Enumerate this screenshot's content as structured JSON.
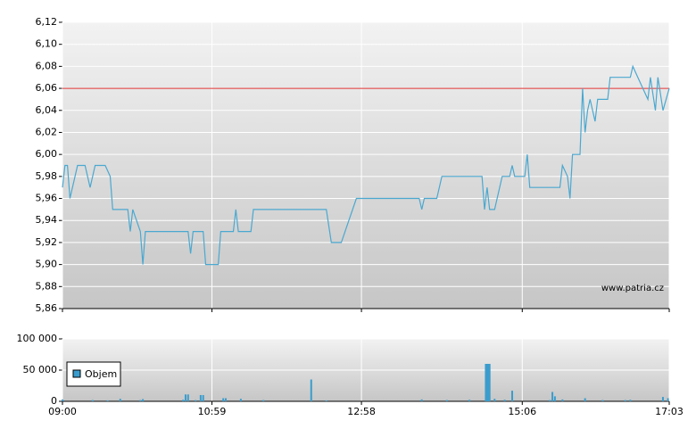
{
  "chart_data": [
    {
      "type": "line",
      "xlim": [
        "09:00",
        "17:03"
      ],
      "ylim": [
        5.86,
        6.12
      ],
      "yticks": [
        {
          "value": 5.86,
          "label": "5,86"
        },
        {
          "value": 5.88,
          "label": "5,88"
        },
        {
          "value": 5.9,
          "label": "5,90"
        },
        {
          "value": 5.92,
          "label": "5,92"
        },
        {
          "value": 5.94,
          "label": "5,94"
        },
        {
          "value": 5.96,
          "label": "5,96"
        },
        {
          "value": 5.98,
          "label": "5,98"
        },
        {
          "value": 6.0,
          "label": "6,00"
        },
        {
          "value": 6.02,
          "label": "6,02"
        },
        {
          "value": 6.04,
          "label": "6,04"
        },
        {
          "value": 6.06,
          "label": "6,06"
        },
        {
          "value": 6.08,
          "label": "6,08"
        },
        {
          "value": 6.1,
          "label": "6,10"
        },
        {
          "value": 6.12,
          "label": "6,12"
        }
      ],
      "grid": true,
      "reference_line": {
        "value": 6.06,
        "color": "#e03030"
      },
      "annotation": "www.patria.cz",
      "series": [
        {
          "color": "#4aa8d0",
          "x": [
            "09:00",
            "09:02",
            "09:04",
            "09:06",
            "09:12",
            "09:18",
            "09:22",
            "09:26",
            "09:34",
            "09:38",
            "09:40",
            "09:52",
            "09:54",
            "09:56",
            "10:02",
            "10:04",
            "10:06",
            "10:40",
            "10:42",
            "10:44",
            "10:52",
            "10:54",
            "11:04",
            "11:06",
            "11:16",
            "11:18",
            "11:20",
            "11:30",
            "11:32",
            "12:30",
            "12:34",
            "12:42",
            "12:54",
            "13:44",
            "13:46",
            "13:48",
            "13:58",
            "14:02",
            "14:34",
            "14:36",
            "14:38",
            "14:40",
            "14:44",
            "14:50",
            "14:56",
            "14:58",
            "15:00",
            "15:08",
            "15:10",
            "15:12",
            "15:36",
            "15:38",
            "15:42",
            "15:44",
            "15:46",
            "15:52",
            "15:54",
            "15:56",
            "15:58",
            "16:00",
            "16:04",
            "16:06",
            "16:14",
            "16:16",
            "16:32",
            "16:34",
            "16:38",
            "16:46",
            "16:48",
            "16:52",
            "16:54",
            "16:58",
            "17:03"
          ],
          "values": [
            5.97,
            5.99,
            5.99,
            5.96,
            5.99,
            5.99,
            5.97,
            5.99,
            5.99,
            5.98,
            5.95,
            5.95,
            5.93,
            5.95,
            5.93,
            5.9,
            5.93,
            5.93,
            5.91,
            5.93,
            5.93,
            5.9,
            5.9,
            5.93,
            5.93,
            5.95,
            5.93,
            5.93,
            5.95,
            5.95,
            5.92,
            5.92,
            5.96,
            5.96,
            5.95,
            5.96,
            5.96,
            5.98,
            5.98,
            5.95,
            5.97,
            5.95,
            5.95,
            5.98,
            5.98,
            5.99,
            5.98,
            5.98,
            6.0,
            5.97,
            5.97,
            5.99,
            5.98,
            5.96,
            6.0,
            6.0,
            6.06,
            6.02,
            6.04,
            6.05,
            6.03,
            6.05,
            6.05,
            6.07,
            6.07,
            6.08,
            6.07,
            6.05,
            6.07,
            6.04,
            6.07,
            6.04,
            6.06
          ]
        }
      ]
    },
    {
      "type": "bar",
      "xlim": [
        "09:00",
        "17:03"
      ],
      "xticks": [
        "09:00",
        "10:59",
        "12:58",
        "15:06",
        "17:03"
      ],
      "ylim": [
        0,
        100000
      ],
      "yticks": [
        0,
        {
          "value": 50000,
          "label": "50 000"
        },
        {
          "value": 100000,
          "label": "100 000"
        }
      ],
      "grid": true,
      "legend": "bottom-left",
      "series": [
        {
          "name": "Objem",
          "color": "#3a9ccc",
          "x": [
            "09:00",
            "09:24",
            "09:36",
            "09:46",
            "10:02",
            "10:04",
            "10:36",
            "10:38",
            "10:40",
            "10:46",
            "10:50",
            "10:52",
            "11:08",
            "11:10",
            "11:22",
            "11:40",
            "12:18",
            "12:30",
            "13:46",
            "14:06",
            "14:24",
            "14:37",
            "14:38",
            "14:39",
            "14:40",
            "14:44",
            "14:52",
            "14:58",
            "15:28",
            "15:30",
            "15:32",
            "15:38",
            "15:56",
            "16:10",
            "16:28",
            "16:32",
            "16:58",
            "17:02"
          ],
          "values": [
            3000,
            2000,
            1500,
            4000,
            2000,
            3500,
            2500,
            11000,
            11000,
            2000,
            10000,
            10000,
            5000,
            5000,
            4000,
            2000,
            35000,
            1500,
            3000,
            2000,
            2500,
            60000,
            60000,
            60000,
            60000,
            4000,
            2500,
            17000,
            2000,
            15000,
            8000,
            3000,
            5000,
            2000,
            2000,
            2500,
            7000,
            5000
          ]
        }
      ]
    }
  ]
}
